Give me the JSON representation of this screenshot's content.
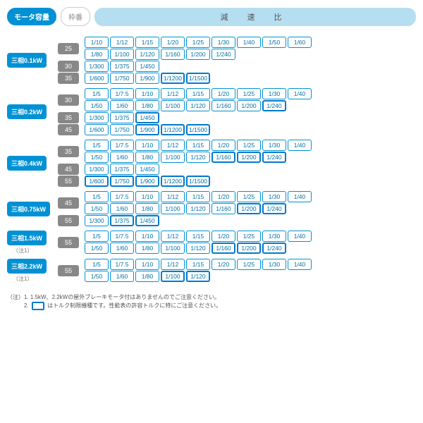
{
  "header": {
    "motor": "モータ容量",
    "frame": "枠番",
    "ratio": "減 速 比"
  },
  "groups": [
    {
      "motor": "三相0.1kW",
      "note": "",
      "frames": [
        {
          "num": "25",
          "lines": [
            [
              {
                "v": "1/10"
              },
              {
                "v": "1/12"
              },
              {
                "v": "1/15"
              },
              {
                "v": "1/20"
              },
              {
                "v": "1/25"
              },
              {
                "v": "1/30"
              },
              {
                "v": "1/40"
              },
              {
                "v": "1/50"
              },
              {
                "v": "1/60"
              }
            ],
            [
              {
                "v": "1/80"
              },
              {
                "v": "1/100"
              },
              {
                "v": "1/120"
              },
              {
                "v": "1/160"
              },
              {
                "v": "1/200"
              },
              {
                "v": "1/240"
              }
            ]
          ]
        },
        {
          "num": "30",
          "lines": [
            [
              {
                "v": "1/300"
              },
              {
                "v": "1/375"
              },
              {
                "v": "1/450"
              }
            ]
          ]
        },
        {
          "num": "35",
          "lines": [
            [
              {
                "v": "1/600"
              },
              {
                "v": "1/750"
              },
              {
                "v": "1/900"
              },
              {
                "v": "1/1200",
                "hl": 1
              },
              {
                "v": "1/1500",
                "hl": 1
              }
            ]
          ]
        }
      ]
    },
    {
      "motor": "三相0.2kW",
      "note": "",
      "frames": [
        {
          "num": "30",
          "lines": [
            [
              {
                "v": "1/5"
              },
              {
                "v": "1/7.5"
              },
              {
                "v": "1/10"
              },
              {
                "v": "1/12"
              },
              {
                "v": "1/15"
              },
              {
                "v": "1/20"
              },
              {
                "v": "1/25"
              },
              {
                "v": "1/30"
              },
              {
                "v": "1/40"
              }
            ],
            [
              {
                "v": "1/50"
              },
              {
                "v": "1/60"
              },
              {
                "v": "1/80"
              },
              {
                "v": "1/100"
              },
              {
                "v": "1/120"
              },
              {
                "v": "1/160"
              },
              {
                "v": "1/200"
              },
              {
                "v": "1/240",
                "hl": 1
              }
            ]
          ]
        },
        {
          "num": "35",
          "lines": [
            [
              {
                "v": "1/300"
              },
              {
                "v": "1/375"
              },
              {
                "v": "1/450",
                "hl": 1
              }
            ]
          ]
        },
        {
          "num": "45",
          "lines": [
            [
              {
                "v": "1/600"
              },
              {
                "v": "1/750"
              },
              {
                "v": "1/900",
                "hl": 1
              },
              {
                "v": "1/1200",
                "hl": 1
              },
              {
                "v": "1/1500",
                "hl": 1
              }
            ]
          ]
        }
      ]
    },
    {
      "motor": "三相0.4kW",
      "note": "",
      "frames": [
        {
          "num": "35",
          "lines": [
            [
              {
                "v": "1/5"
              },
              {
                "v": "1/7.5"
              },
              {
                "v": "1/10"
              },
              {
                "v": "1/12"
              },
              {
                "v": "1/15"
              },
              {
                "v": "1/20"
              },
              {
                "v": "1/25"
              },
              {
                "v": "1/30"
              },
              {
                "v": "1/40"
              }
            ],
            [
              {
                "v": "1/50"
              },
              {
                "v": "1/60"
              },
              {
                "v": "1/80"
              },
              {
                "v": "1/100"
              },
              {
                "v": "1/120"
              },
              {
                "v": "1/160",
                "hl": 1
              },
              {
                "v": "1/200",
                "hl": 1
              },
              {
                "v": "1/240",
                "hl": 1
              }
            ]
          ]
        },
        {
          "num": "45",
          "lines": [
            [
              {
                "v": "1/300"
              },
              {
                "v": "1/375"
              },
              {
                "v": "1/450"
              }
            ]
          ]
        },
        {
          "num": "55",
          "lines": [
            [
              {
                "v": "1/600",
                "hl": 1
              },
              {
                "v": "1/750",
                "hl": 1
              },
              {
                "v": "1/900",
                "hl": 1
              },
              {
                "v": "1/1200",
                "hl": 1
              },
              {
                "v": "1/1500",
                "hl": 1
              }
            ]
          ]
        }
      ]
    },
    {
      "motor": "三相0.75kW",
      "note": "",
      "frames": [
        {
          "num": "45",
          "lines": [
            [
              {
                "v": "1/5"
              },
              {
                "v": "1/7.5"
              },
              {
                "v": "1/10"
              },
              {
                "v": "1/12"
              },
              {
                "v": "1/15"
              },
              {
                "v": "1/20"
              },
              {
                "v": "1/25"
              },
              {
                "v": "1/30"
              },
              {
                "v": "1/40"
              }
            ],
            [
              {
                "v": "1/50"
              },
              {
                "v": "1/60"
              },
              {
                "v": "1/80"
              },
              {
                "v": "1/100"
              },
              {
                "v": "1/120"
              },
              {
                "v": "1/160"
              },
              {
                "v": "1/200",
                "hl": 1
              },
              {
                "v": "1/240",
                "hl": 1
              }
            ]
          ]
        },
        {
          "num": "55",
          "lines": [
            [
              {
                "v": "1/300"
              },
              {
                "v": "1/375",
                "hl": 1
              },
              {
                "v": "1/450",
                "hl": 1
              }
            ]
          ]
        }
      ]
    },
    {
      "motor": "三相1.5kW",
      "note": "（注1）",
      "frames": [
        {
          "num": "55",
          "lines": [
            [
              {
                "v": "1/5"
              },
              {
                "v": "1/7.5"
              },
              {
                "v": "1/10"
              },
              {
                "v": "1/12"
              },
              {
                "v": "1/15"
              },
              {
                "v": "1/20"
              },
              {
                "v": "1/25"
              },
              {
                "v": "1/30"
              },
              {
                "v": "1/40"
              }
            ],
            [
              {
                "v": "1/50"
              },
              {
                "v": "1/60"
              },
              {
                "v": "1/80"
              },
              {
                "v": "1/100"
              },
              {
                "v": "1/120"
              },
              {
                "v": "1/160",
                "hl": 1
              },
              {
                "v": "1/200",
                "hl": 1
              },
              {
                "v": "1/240",
                "hl": 1
              }
            ]
          ]
        }
      ]
    },
    {
      "motor": "三相2.2kW",
      "note": "（注1）",
      "frames": [
        {
          "num": "55",
          "lines": [
            [
              {
                "v": "1/5"
              },
              {
                "v": "1/7.5"
              },
              {
                "v": "1/10"
              },
              {
                "v": "1/12"
              },
              {
                "v": "1/15"
              },
              {
                "v": "1/20"
              },
              {
                "v": "1/25"
              },
              {
                "v": "1/30"
              },
              {
                "v": "1/40"
              }
            ],
            [
              {
                "v": "1/50"
              },
              {
                "v": "1/60"
              },
              {
                "v": "1/80"
              },
              {
                "v": "1/100",
                "hl": 1
              },
              {
                "v": "1/120",
                "hl": 1
              }
            ]
          ]
        }
      ]
    }
  ],
  "footnotes": {
    "n1": "（注）1. 1.5kW、2.2kWの屋外ブレーキモータ付はありませんのでご注意ください。",
    "n2_a": "2. ",
    "n2_b": " はトルク制限機種です。性能表の許容トルクに特にご注意ください。"
  }
}
